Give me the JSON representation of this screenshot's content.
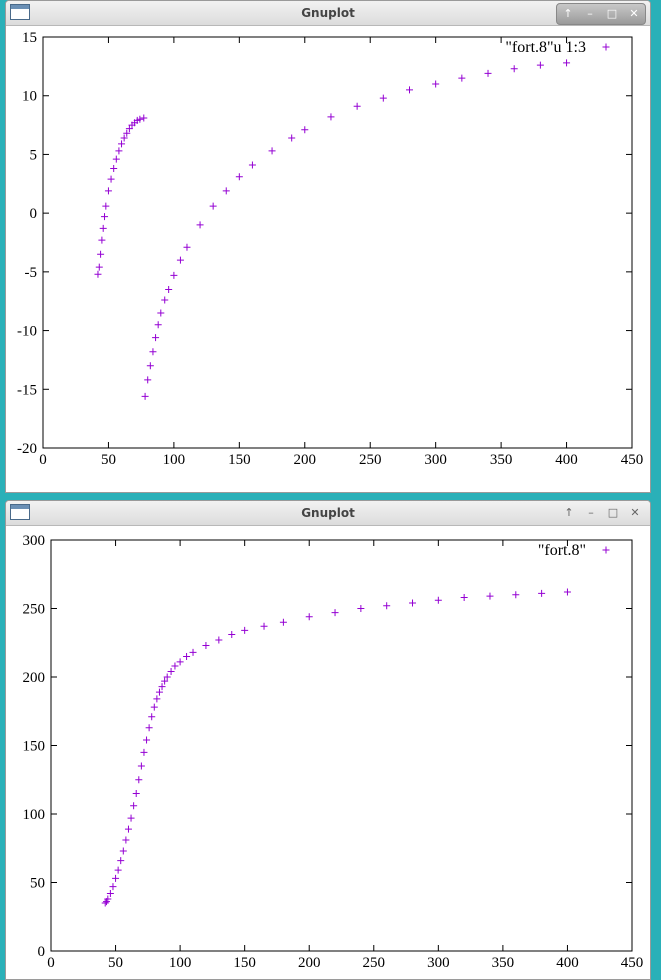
{
  "windows": [
    {
      "title": "Gnuplot",
      "controls": [
        "↑",
        "–",
        "□",
        "✕"
      ]
    },
    {
      "title": "Gnuplot",
      "controls": [
        "↑",
        "–",
        "□",
        "✕"
      ]
    }
  ],
  "colors": {
    "series": "#9400d3",
    "axis": "#000000",
    "background": "#ffffff"
  },
  "chart_data": [
    {
      "type": "scatter",
      "title": "",
      "xlabel": "",
      "ylabel": "",
      "xlim": [
        0,
        450
      ],
      "ylim": [
        -20,
        15
      ],
      "xticks": [
        0,
        50,
        100,
        150,
        200,
        250,
        300,
        350,
        400,
        450
      ],
      "yticks": [
        -20,
        -15,
        -10,
        -5,
        0,
        5,
        10,
        15
      ],
      "legend": "top-right",
      "grid": false,
      "series": [
        {
          "name": "\"fort.8\"u 1:3",
          "marker": "plus",
          "x": [
            42,
            43,
            44,
            45,
            46,
            47,
            48,
            50,
            52,
            54,
            56,
            58,
            60,
            62,
            64,
            66,
            68,
            70,
            72,
            74,
            77,
            78,
            80,
            82,
            84,
            86,
            88,
            90,
            93,
            96,
            100,
            105,
            110,
            120,
            130,
            140,
            150,
            160,
            175,
            190,
            200,
            220,
            240,
            260,
            280,
            300,
            320,
            340,
            360,
            380,
            400
          ],
          "y": [
            -5.2,
            -4.6,
            -3.5,
            -2.3,
            -1.3,
            -0.3,
            0.6,
            1.9,
            2.9,
            3.8,
            4.6,
            5.3,
            5.9,
            6.4,
            6.8,
            7.2,
            7.5,
            7.7,
            7.9,
            8.0,
            8.1,
            -15.6,
            -14.2,
            -13.0,
            -11.8,
            -10.6,
            -9.5,
            -8.5,
            -7.4,
            -6.5,
            -5.3,
            -4.0,
            -2.9,
            -1.0,
            0.6,
            1.9,
            3.1,
            4.1,
            5.3,
            6.4,
            7.1,
            8.2,
            9.1,
            9.8,
            10.5,
            11.0,
            11.5,
            11.9,
            12.3,
            12.6,
            12.8
          ]
        }
      ]
    },
    {
      "type": "scatter",
      "title": "",
      "xlabel": "",
      "ylabel": "",
      "xlim": [
        0,
        450
      ],
      "ylim": [
        0,
        300
      ],
      "xticks": [
        0,
        50,
        100,
        150,
        200,
        250,
        300,
        350,
        400,
        450
      ],
      "yticks": [
        0,
        50,
        100,
        150,
        200,
        250,
        300
      ],
      "legend": "top-right",
      "grid": false,
      "series": [
        {
          "name": "\"fort.8\"",
          "marker": "plus",
          "x": [
            42,
            43,
            44,
            46,
            48,
            50,
            52,
            54,
            56,
            58,
            60,
            62,
            64,
            66,
            68,
            70,
            72,
            74,
            76,
            78,
            80,
            82,
            84,
            86,
            88,
            90,
            93,
            96,
            100,
            105,
            110,
            120,
            130,
            140,
            150,
            165,
            180,
            200,
            220,
            240,
            260,
            280,
            300,
            320,
            340,
            360,
            380,
            400
          ],
          "y": [
            35,
            36,
            38,
            42,
            47,
            53,
            59,
            66,
            73,
            81,
            89,
            97,
            106,
            115,
            125,
            135,
            145,
            154,
            163,
            171,
            178,
            184,
            189,
            193,
            197,
            200,
            204,
            208,
            211,
            215,
            218,
            223,
            227,
            231,
            234,
            237,
            240,
            244,
            247,
            250,
            252,
            254,
            256,
            258,
            259,
            260,
            261,
            262
          ]
        }
      ]
    }
  ]
}
